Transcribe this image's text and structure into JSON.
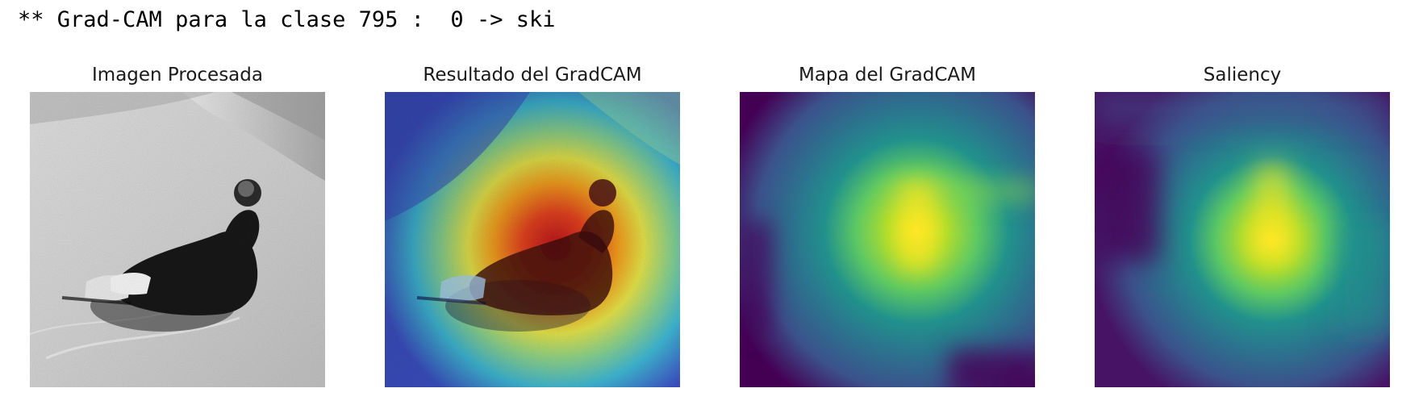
{
  "output": {
    "log_line": "** Grad-CAM para la clase 795 :  0 -> ski"
  },
  "panels": [
    {
      "title": "Imagen Procesada",
      "content": "grayscale-photo"
    },
    {
      "title": "Resultado del GradCAM",
      "content": "jet-heatmap-overlay"
    },
    {
      "title": "Mapa del GradCAM",
      "content": "viridis-heatmap"
    },
    {
      "title": "Saliency",
      "content": "viridis-heatmap"
    }
  ]
}
